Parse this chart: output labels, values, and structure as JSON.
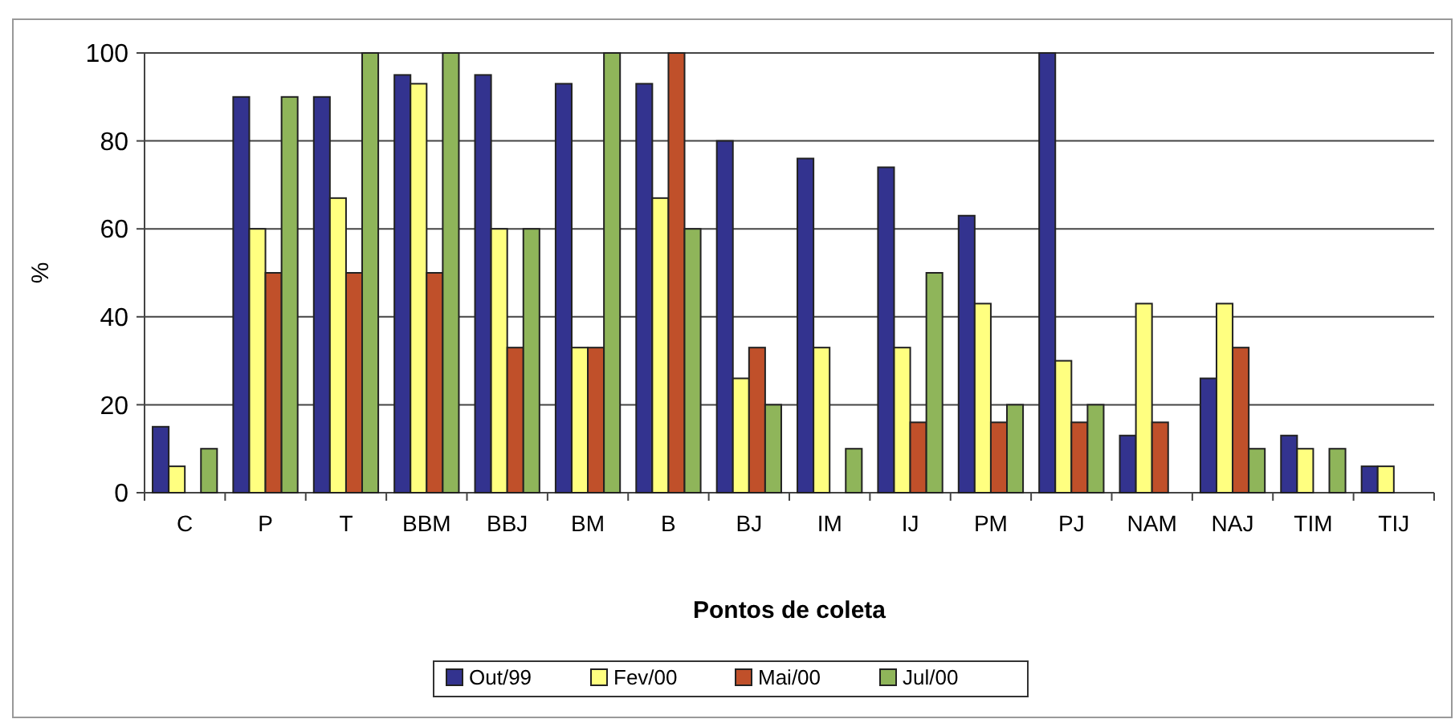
{
  "chart_data": {
    "type": "bar",
    "xlabel": "Pontos de coleta",
    "ylabel": "%",
    "categories": [
      "C",
      "P",
      "T",
      "BBM",
      "BBJ",
      "BM",
      "B",
      "BJ",
      "IM",
      "IJ",
      "PM",
      "PJ",
      "NAM",
      "NAJ",
      "TIM",
      "TIJ"
    ],
    "series": [
      {
        "name": "Out/99",
        "color": "#33338f",
        "values": [
          15,
          90,
          90,
          95,
          95,
          93,
          93,
          80,
          76,
          74,
          63,
          100,
          13,
          26,
          13,
          6
        ]
      },
      {
        "name": "Fev/00",
        "color": "#ffff80",
        "values": [
          6,
          60,
          67,
          93,
          60,
          33,
          67,
          26,
          33,
          33,
          43,
          30,
          43,
          43,
          10,
          6
        ]
      },
      {
        "name": "Mai/00",
        "color": "#c0502a",
        "values": [
          null,
          50,
          50,
          50,
          33,
          33,
          100,
          33,
          null,
          16,
          16,
          16,
          16,
          33,
          null,
          null
        ]
      },
      {
        "name": "Jul/00",
        "color": "#8fb55a",
        "values": [
          10,
          90,
          100,
          100,
          60,
          100,
          60,
          20,
          10,
          50,
          20,
          20,
          null,
          10,
          10,
          null
        ]
      }
    ],
    "ylim": [
      0,
      100
    ],
    "yticks": [
      0,
      20,
      40,
      60,
      80,
      100
    ],
    "grid": "y",
    "legend": "bottom"
  }
}
